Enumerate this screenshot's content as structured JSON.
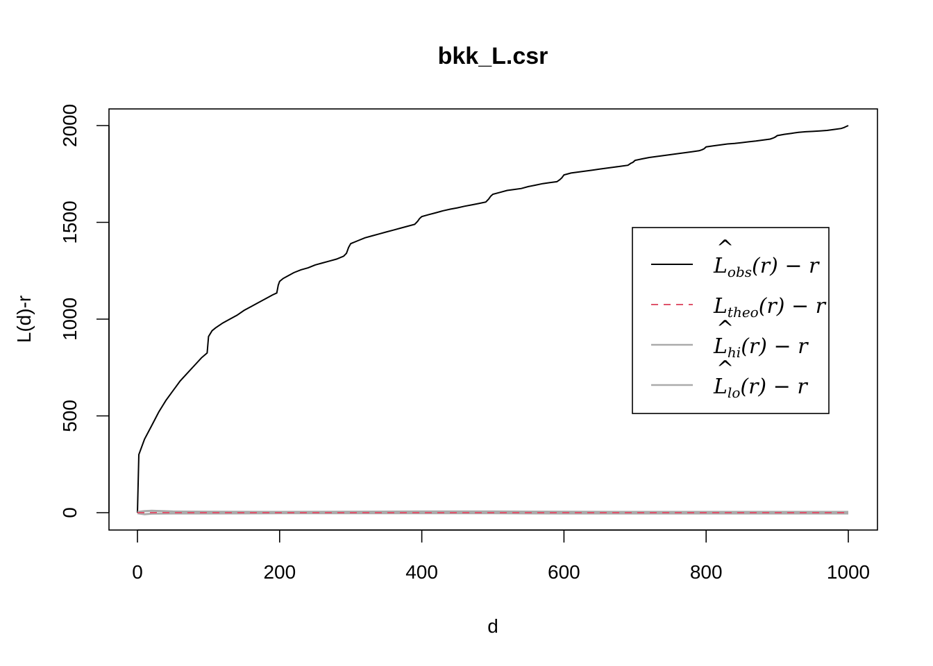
{
  "chart_data": {
    "type": "line",
    "title": "bkk_L.csr",
    "xlabel": "d",
    "ylabel": "L(d)-r",
    "xlim": [
      0,
      1000
    ],
    "ylim": [
      0,
      2000
    ],
    "x_ticks": [
      "0",
      "200",
      "400",
      "600",
      "800",
      "1000"
    ],
    "y_ticks": [
      "0",
      "500",
      "1000",
      "1500",
      "2000"
    ],
    "legend_position": "right",
    "legend": [
      {
        "base": "L",
        "hat": "^",
        "sub": "obs",
        "rest": "(r) − r",
        "color": "#000000",
        "dash": "solid"
      },
      {
        "base": "L",
        "hat": "",
        "sub": "theo",
        "rest": "(r) − r",
        "color": "#DF536B",
        "dash": "dashed"
      },
      {
        "base": "L",
        "hat": "^",
        "sub": "hi",
        "rest": "(r) − r",
        "color": "#AAAAAA",
        "dash": "solid"
      },
      {
        "base": "L",
        "hat": "^",
        "sub": "lo",
        "rest": "(r) − r",
        "color": "#AAAAAA",
        "dash": "solid"
      }
    ],
    "series": [
      {
        "color": "#000000",
        "dash": "solid",
        "x": [
          0,
          2,
          5,
          10,
          20,
          30,
          40,
          50,
          60,
          70,
          80,
          90,
          98,
          100,
          105,
          110,
          120,
          130,
          140,
          150,
          160,
          170,
          180,
          190,
          196,
          198,
          200,
          205,
          210,
          220,
          230,
          240,
          250,
          260,
          270,
          280,
          290,
          294,
          297,
          300,
          310,
          320,
          330,
          340,
          350,
          360,
          370,
          380,
          390,
          394,
          397,
          400,
          410,
          420,
          430,
          440,
          450,
          460,
          470,
          480,
          490,
          494,
          497,
          500,
          510,
          520,
          530,
          540,
          550,
          560,
          570,
          580,
          590,
          594,
          597,
          600,
          610,
          620,
          630,
          640,
          650,
          660,
          670,
          680,
          690,
          694,
          697,
          700,
          710,
          720,
          730,
          740,
          750,
          760,
          770,
          780,
          790,
          794,
          797,
          800,
          810,
          820,
          830,
          840,
          850,
          860,
          870,
          880,
          890,
          894,
          897,
          900,
          910,
          920,
          930,
          940,
          950,
          960,
          970,
          980,
          990,
          994,
          997,
          1000
        ],
        "y": [
          0,
          300,
          330,
          380,
          450,
          520,
          580,
          630,
          680,
          720,
          760,
          800,
          825,
          910,
          940,
          955,
          980,
          1000,
          1020,
          1045,
          1065,
          1085,
          1105,
          1125,
          1135,
          1175,
          1195,
          1210,
          1220,
          1240,
          1255,
          1265,
          1280,
          1290,
          1300,
          1310,
          1325,
          1340,
          1370,
          1390,
          1405,
          1420,
          1430,
          1440,
          1450,
          1460,
          1470,
          1480,
          1490,
          1505,
          1520,
          1530,
          1540,
          1550,
          1560,
          1568,
          1575,
          1583,
          1590,
          1597,
          1605,
          1620,
          1635,
          1645,
          1655,
          1665,
          1670,
          1675,
          1685,
          1692,
          1700,
          1705,
          1710,
          1720,
          1730,
          1745,
          1755,
          1760,
          1765,
          1770,
          1775,
          1780,
          1785,
          1790,
          1795,
          1805,
          1810,
          1820,
          1828,
          1835,
          1840,
          1845,
          1850,
          1855,
          1860,
          1865,
          1870,
          1875,
          1880,
          1890,
          1895,
          1900,
          1905,
          1908,
          1912,
          1916,
          1920,
          1925,
          1930,
          1935,
          1940,
          1948,
          1955,
          1960,
          1965,
          1968,
          1970,
          1972,
          1975,
          1980,
          1985,
          1990,
          1995,
          2000
        ]
      },
      {
        "color": "#AAAAAA",
        "dash": "solid",
        "x": [
          0,
          10,
          20,
          50,
          100,
          200,
          300,
          400,
          500,
          600,
          700,
          800,
          900,
          1000
        ],
        "y": [
          4,
          8,
          10,
          6,
          5,
          4,
          5,
          6,
          6,
          5,
          4,
          4,
          4,
          4
        ]
      },
      {
        "color": "#AAAAAA",
        "dash": "solid",
        "x": [
          0,
          10,
          20,
          50,
          100,
          200,
          300,
          400,
          500,
          600,
          700,
          800,
          900,
          1000
        ],
        "y": [
          -3,
          -8,
          -5,
          -4,
          -4,
          -3,
          -3,
          -3,
          -3,
          -4,
          -4,
          -4,
          -4,
          -4
        ]
      },
      {
        "color": "#DF536B",
        "dash": "dashed",
        "x": [
          0,
          1000
        ],
        "y": [
          0,
          0
        ]
      }
    ]
  }
}
